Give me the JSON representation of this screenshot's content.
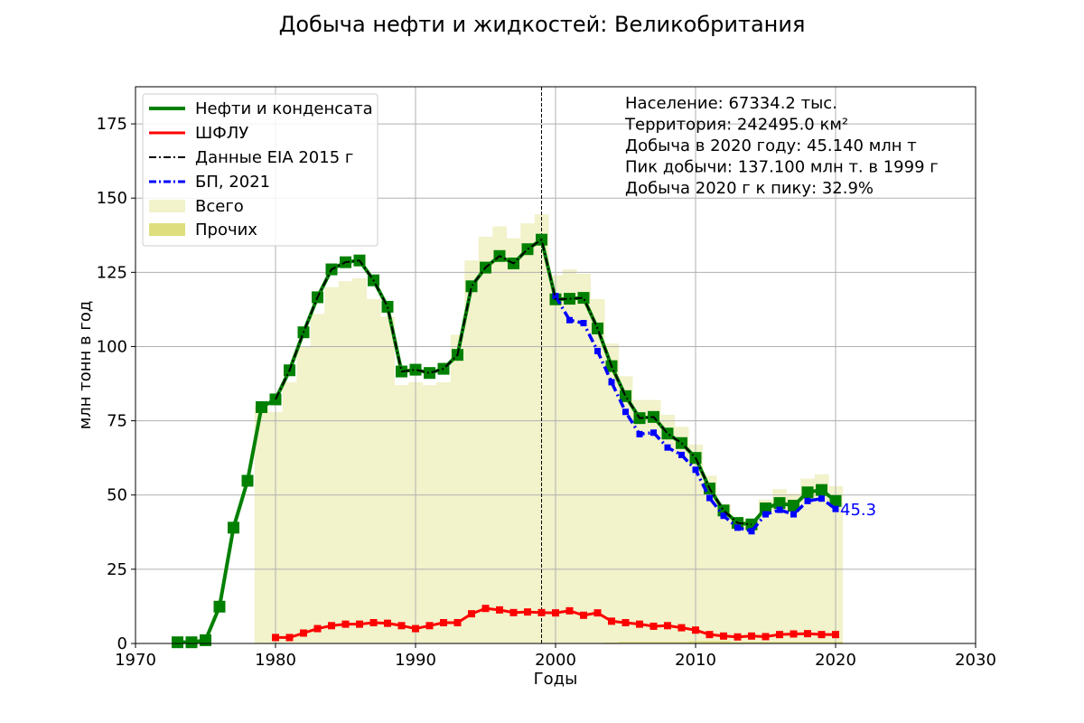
{
  "chart_data": {
    "type": "line",
    "title": "Добыча нефти и жидкостей: Великобритания",
    "xlabel": "Годы",
    "ylabel": "млн тонн в год",
    "xlim": [
      1970,
      2030
    ],
    "ylim": [
      0,
      187.5
    ],
    "x_ticks": [
      1970,
      1980,
      1990,
      2000,
      2010,
      2020,
      2030
    ],
    "y_ticks": [
      0,
      25,
      50,
      75,
      100,
      125,
      150,
      175
    ],
    "grid": true,
    "legend_position": "top-left",
    "peak_year": 1999,
    "end_label": "45.3",
    "colors": {
      "oil": "#008000",
      "ngl": "#ff0000",
      "eia": "#000000",
      "bp": "#0000ff",
      "total": "#f2f2cb",
      "other": "#dede7e"
    },
    "info_lines": [
      "Население: 67334.2 тыс.",
      "Территория: 242495.0 км²",
      "Добыча в 2020 году: 45.140 млн т",
      "Пик добычи: 137.100 млн т. в 1999 г",
      "Добыча 2020 г к пику: 32.9%"
    ],
    "legend": {
      "oil": "Нефти и конденсата",
      "ngl": "ШФЛУ",
      "eia": "Данные EIA 2015 г",
      "bp": "БП, 2021",
      "total": "Всего",
      "other": "Прочих"
    },
    "series": [
      {
        "key": "oil",
        "x": [
          1973,
          1974,
          1975,
          1976,
          1977,
          1978,
          1979,
          1980,
          1981,
          1982,
          1983,
          1984,
          1985,
          1986,
          1987,
          1988,
          1989,
          1990,
          1991,
          1992,
          1993,
          1994,
          1995,
          1996,
          1997,
          1998,
          1999,
          2000,
          2001,
          2002,
          2003,
          2004,
          2005,
          2006,
          2007,
          2008,
          2009,
          2010,
          2011,
          2012,
          2013,
          2014,
          2015,
          2016,
          2017,
          2018,
          2019,
          2020
        ],
        "values": [
          0.4,
          0.4,
          1.1,
          12.4,
          39.0,
          54.8,
          79.6,
          82.2,
          92.0,
          104.8,
          116.6,
          126.0,
          128.4,
          129.0,
          122.3,
          113.4,
          91.6,
          92.2,
          91.1,
          92.5,
          97.2,
          120.3,
          126.6,
          130.5,
          128.0,
          132.8,
          136.0,
          115.9,
          116.1,
          116.4,
          106.1,
          93.4,
          83.3,
          75.9,
          76.3,
          70.7,
          67.5,
          62.5,
          52.2,
          44.8,
          40.6,
          40.1,
          45.5,
          47.3,
          46.4,
          50.9,
          51.7,
          48.0
        ]
      },
      {
        "key": "ngl",
        "x": [
          1980,
          1981,
          1982,
          1983,
          1984,
          1985,
          1986,
          1987,
          1988,
          1989,
          1990,
          1991,
          1992,
          1993,
          1994,
          1995,
          1996,
          1997,
          1998,
          1999,
          2000,
          2001,
          2002,
          2003,
          2004,
          2005,
          2006,
          2007,
          2008,
          2009,
          2010,
          2011,
          2012,
          2013,
          2014,
          2015,
          2016,
          2017,
          2018,
          2019,
          2020
        ],
        "values": [
          2.0,
          2.0,
          3.5,
          5.0,
          6.0,
          6.5,
          6.5,
          7.0,
          6.8,
          6.0,
          5.0,
          6.0,
          7.0,
          7.0,
          10.0,
          11.8,
          11.3,
          10.4,
          10.6,
          10.4,
          10.3,
          11.0,
          9.5,
          10.3,
          7.5,
          7.0,
          6.5,
          5.8,
          6.0,
          5.3,
          4.5,
          3.0,
          2.5,
          2.2,
          2.5,
          2.3,
          3.0,
          3.2,
          3.3,
          3.0,
          3.0
        ]
      },
      {
        "key": "eia",
        "x": [
          1980,
          1981,
          1982,
          1983,
          1984,
          1985,
          1986,
          1987,
          1988,
          1989,
          1990,
          1991,
          1992,
          1993,
          1994,
          1995,
          1996,
          1997,
          1998,
          1999,
          2000,
          2001,
          2002,
          2003,
          2004,
          2005,
          2006,
          2007,
          2008,
          2009,
          2010,
          2011,
          2012,
          2013,
          2014
        ],
        "values": [
          82.2,
          92.0,
          104.8,
          116.6,
          126.0,
          128.4,
          129.0,
          122.3,
          113.4,
          91.6,
          92.2,
          91.1,
          92.5,
          97.2,
          120.3,
          126.6,
          130.5,
          128.0,
          132.8,
          136.0,
          115.9,
          116.1,
          116.4,
          106.1,
          93.4,
          83.3,
          75.9,
          76.3,
          70.7,
          67.5,
          62.5,
          52.2,
          44.8,
          40.6,
          40.1
        ]
      },
      {
        "key": "bp",
        "x": [
          2000,
          2001,
          2002,
          2003,
          2004,
          2005,
          2006,
          2007,
          2008,
          2009,
          2010,
          2011,
          2012,
          2013,
          2014,
          2015,
          2016,
          2017,
          2018,
          2019,
          2020
        ],
        "values": [
          117.0,
          108.9,
          107.9,
          98.5,
          88.0,
          78.0,
          70.5,
          71.0,
          66.0,
          63.5,
          58.5,
          49.0,
          43.0,
          39.0,
          37.8,
          43.5,
          45.0,
          43.5,
          48.0,
          48.8,
          45.3
        ]
      }
    ],
    "bars": {
      "x": [
        1979,
        1980,
        1981,
        1982,
        1983,
        1984,
        1985,
        1986,
        1987,
        1988,
        1989,
        1990,
        1991,
        1992,
        1993,
        1994,
        1995,
        1996,
        1997,
        1998,
        1999,
        2000,
        2001,
        2002,
        2003,
        2004,
        2005,
        2006,
        2007,
        2008,
        2009,
        2010,
        2011,
        2012,
        2013,
        2014,
        2015,
        2016,
        2017,
        2018,
        2019,
        2020
      ],
      "total": [
        80.0,
        78.0,
        88.0,
        100.0,
        111.0,
        120.0,
        122.0,
        123.0,
        116.0,
        110.0,
        87.0,
        88.0,
        87.0,
        88.0,
        104.0,
        129.0,
        137.0,
        140.5,
        136.5,
        141.5,
        144.5,
        124.0,
        126.0,
        124.5,
        116.0,
        101.0,
        90.0,
        82.0,
        82.0,
        77.0,
        73.0,
        67.0,
        56.5,
        47.0,
        42.0,
        41.5,
        48.5,
        52.0,
        50.5,
        55.5,
        57.0,
        53.0
      ],
      "other": [
        0,
        0,
        0,
        0,
        0,
        0,
        0,
        0,
        0,
        0,
        0,
        0,
        0,
        0,
        0,
        0,
        0,
        0,
        0,
        0,
        0,
        0,
        0,
        0,
        0,
        0.3,
        0.5,
        0.5,
        0.5,
        0.5,
        0.5,
        0.8,
        0.8,
        0.8,
        0.5,
        0.5,
        0.5,
        0.5,
        0.5,
        0.5,
        0.5,
        0.5
      ]
    }
  }
}
